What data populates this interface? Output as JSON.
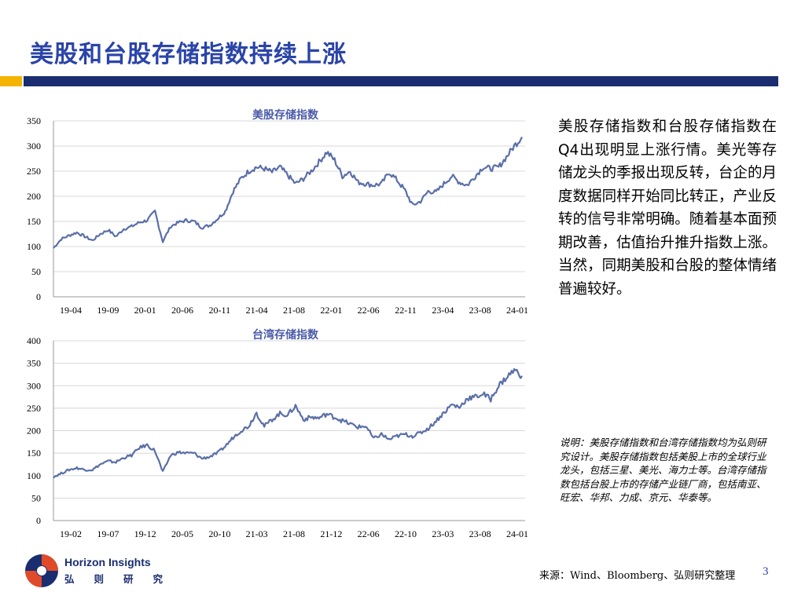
{
  "slide": {
    "title": "美股和台股存储指数持续上涨",
    "body": "美股存储指数和台股存储指数在Q4出现明显上涨行情。美光等存储龙头的季报出现反转，台企的月度数据同样开始同比转正，产业反转的信号非常明确。随着基本面预期改善，估值抬升推升指数上涨。当然，同期美股和台股的整体情绪普遍较好。",
    "note": "说明：美股存储指数和台湾存储指数均为弘则研究设计。美股存储指数包括美股上市的全球行业龙头，包括三星、美光、海力士等。台湾存储指数包括台股上市的存储产业链厂商，包括南亚、旺宏、华邦、力成、京元、华泰等。",
    "source": "来源：Wind、Bloomberg、弘则研究整理",
    "page_number": "3",
    "logo": {
      "en": "Horizon Insights",
      "cn": "弘则研究"
    },
    "colors": {
      "title": "#2a44a8",
      "band": "#1a2d6e",
      "accent": "#f5b400",
      "line": "#5a6fa8"
    }
  },
  "chart_data": [
    {
      "type": "line",
      "title": "美股存储指数",
      "xlabel": "",
      "ylabel": "",
      "ylim": [
        0,
        350
      ],
      "yticks": [
        0,
        50,
        100,
        150,
        200,
        250,
        300,
        350
      ],
      "xticks": [
        "19-04",
        "19-09",
        "20-01",
        "20-06",
        "20-11",
        "21-04",
        "21-08",
        "22-01",
        "22-06",
        "22-11",
        "23-04",
        "23-08",
        "24-01"
      ],
      "grid": true,
      "x": [
        "2019-01",
        "2019-02",
        "2019-03",
        "2019-04",
        "2019-05",
        "2019-06",
        "2019-07",
        "2019-08",
        "2019-09",
        "2019-10",
        "2019-11",
        "2019-12",
        "2020-01",
        "2020-02",
        "2020-03",
        "2020-04",
        "2020-05",
        "2020-06",
        "2020-07",
        "2020-08",
        "2020-09",
        "2020-10",
        "2020-11",
        "2020-12",
        "2021-01",
        "2021-02",
        "2021-03",
        "2021-04",
        "2021-05",
        "2021-06",
        "2021-07",
        "2021-08",
        "2021-09",
        "2021-10",
        "2021-11",
        "2021-12",
        "2022-01",
        "2022-02",
        "2022-03",
        "2022-04",
        "2022-05",
        "2022-06",
        "2022-07",
        "2022-08",
        "2022-09",
        "2022-10",
        "2022-11",
        "2022-12",
        "2023-01",
        "2023-02",
        "2023-03",
        "2023-04",
        "2023-05",
        "2023-06",
        "2023-07",
        "2023-08",
        "2023-09",
        "2023-10",
        "2023-11",
        "2023-12",
        "2024-01"
      ],
      "values": [
        97,
        115,
        122,
        128,
        120,
        112,
        125,
        133,
        120,
        135,
        140,
        148,
        152,
        170,
        110,
        140,
        148,
        152,
        150,
        138,
        142,
        155,
        170,
        210,
        235,
        250,
        258,
        255,
        248,
        258,
        242,
        225,
        235,
        250,
        268,
        288,
        272,
        240,
        250,
        228,
        225,
        222,
        225,
        248,
        232,
        212,
        182,
        190,
        210,
        208,
        225,
        240,
        228,
        222,
        240,
        258,
        255,
        258,
        278,
        300,
        318
      ],
      "color": "#5a6fa8"
    },
    {
      "type": "line",
      "title": "台湾存储指数",
      "xlabel": "",
      "ylabel": "",
      "ylim": [
        0,
        400
      ],
      "yticks": [
        0,
        50,
        100,
        150,
        200,
        250,
        300,
        350,
        400
      ],
      "xticks": [
        "19-02",
        "19-07",
        "19-12",
        "20-05",
        "20-10",
        "21-03",
        "21-08",
        "21-12",
        "22-06",
        "22-10",
        "23-03",
        "23-08",
        "24-01"
      ],
      "grid": true,
      "x": [
        "2019-01",
        "2019-02",
        "2019-03",
        "2019-04",
        "2019-05",
        "2019-06",
        "2019-07",
        "2019-08",
        "2019-09",
        "2019-10",
        "2019-11",
        "2019-12",
        "2020-01",
        "2020-02",
        "2020-03",
        "2020-04",
        "2020-05",
        "2020-06",
        "2020-07",
        "2020-08",
        "2020-09",
        "2020-10",
        "2020-11",
        "2020-12",
        "2021-01",
        "2021-02",
        "2021-03",
        "2021-04",
        "2021-05",
        "2021-06",
        "2021-07",
        "2021-08",
        "2021-09",
        "2021-10",
        "2021-11",
        "2021-12",
        "2022-01",
        "2022-02",
        "2022-03",
        "2022-04",
        "2022-05",
        "2022-06",
        "2022-07",
        "2022-08",
        "2022-09",
        "2022-10",
        "2022-11",
        "2022-12",
        "2023-01",
        "2023-02",
        "2023-03",
        "2023-04",
        "2023-05",
        "2023-06",
        "2023-07",
        "2023-08",
        "2023-09",
        "2023-10",
        "2023-11",
        "2023-12",
        "2024-01"
      ],
      "values": [
        97,
        105,
        113,
        117,
        113,
        113,
        125,
        132,
        130,
        140,
        145,
        162,
        168,
        155,
        108,
        145,
        152,
        150,
        150,
        138,
        142,
        150,
        165,
        185,
        200,
        210,
        240,
        210,
        225,
        238,
        235,
        255,
        225,
        230,
        228,
        237,
        230,
        222,
        215,
        208,
        210,
        182,
        192,
        180,
        188,
        192,
        188,
        195,
        205,
        222,
        240,
        258,
        252,
        272,
        275,
        282,
        270,
        300,
        318,
        335,
        322
      ],
      "color": "#5a6fa8"
    }
  ]
}
